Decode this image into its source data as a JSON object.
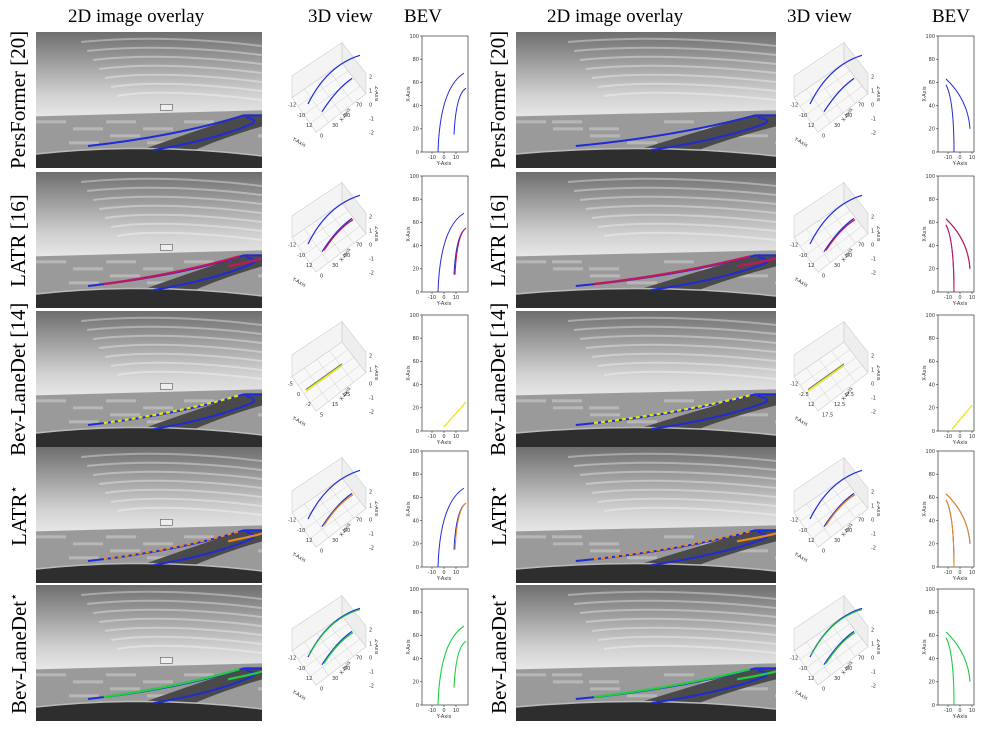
{
  "column_headers": [
    "2D image overlay",
    "3D view",
    "BEV",
    "2D image overlay",
    "3D view",
    "BEV"
  ],
  "rows": [
    {
      "label": "PersFormer [20]",
      "star": false
    },
    {
      "label": "LATR [16]",
      "star": false
    },
    {
      "label": "Bev-LaneDet [14]",
      "star": false
    },
    {
      "label": "LATR",
      "star": true
    },
    {
      "label": "Bev-LaneDet",
      "star": true
    }
  ],
  "star_symbol": "⋆",
  "lane_colors": {
    "ground_truth": "#1f2bd6",
    "LATR [16]": "#c2185b",
    "Bev-LaneDet [14]": "#e6e600",
    "LATR*": "#e08a2c",
    "Bev-LaneDet*": "#22cc44"
  },
  "axis_text": {
    "x_axis": "X-Axis",
    "y_axis": "Y-Axis",
    "z_axis": "Z-Axis",
    "bev_x_ticks": [
      "0",
      "20",
      "40",
      "60",
      "80",
      "100"
    ],
    "bev_y_ticks": [
      "-10",
      "0",
      "10"
    ],
    "view3d_z_ticks": [
      "2",
      "1",
      "0",
      "-1",
      "-2"
    ],
    "view3d_x_ticks_default": [
      "0",
      "30",
      "50",
      "70"
    ],
    "view3d_y_ticks_default": [
      "-12",
      "-10",
      "12"
    ],
    "view3d_x_ticks_bev_left": [
      "5",
      "15",
      "25"
    ],
    "view3d_y_ticks_bev_left": [
      "-5",
      "0",
      "-2"
    ],
    "view3d_x_ticks_bev_right": [
      "17.5",
      "12.5",
      "2.5"
    ],
    "view3d_y_ticks_bev_right": [
      "-12",
      "-2.5",
      "12"
    ]
  }
}
